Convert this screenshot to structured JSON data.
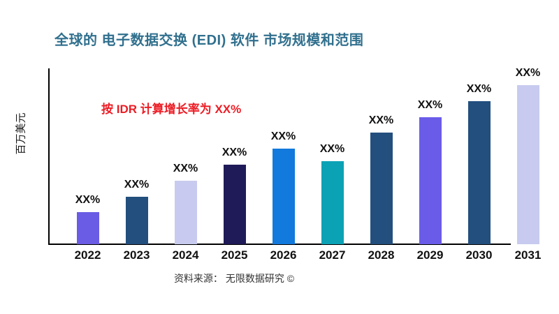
{
  "colors": {
    "title": "#31708E",
    "annotation": "#EC1C24",
    "axis": "#000000",
    "tick_text": "#111111",
    "source_text": "#333333"
  },
  "chart_data": {
    "type": "bar",
    "title": "全球的 电子数据交换 (EDI) 软件 市场规模和范围",
    "ylabel": "百万美元",
    "xlabel": "",
    "annotation": "按 IDR 计算增长率为 XX%",
    "source": "资料来源： 无限数据研究 ©",
    "categories": [
      "2022",
      "2023",
      "2024",
      "2025",
      "2026",
      "2027",
      "2028",
      "2029",
      "2030",
      "2031"
    ],
    "values": [
      20,
      30,
      40,
      50,
      60,
      52,
      70,
      80,
      90,
      100
    ],
    "value_labels": [
      "XX%",
      "XX%",
      "XX%",
      "XX%",
      "XX%",
      "XX%",
      "XX%",
      "XX%",
      "XX%",
      "XX%"
    ],
    "bar_colors": [
      "#6A5CE4",
      "#224F7E",
      "#C8CBEF",
      "#1F1B58",
      "#1279DD",
      "#0BA2B5",
      "#224F7E",
      "#6A5CE8",
      "#224F7E",
      "#C8CBEF"
    ],
    "ylim": [
      0,
      110
    ],
    "y_ticks_shown": false,
    "grid": false,
    "legend": "none",
    "note": "values are relative heights; no numeric y-axis ticks are displayed in the chart"
  }
}
